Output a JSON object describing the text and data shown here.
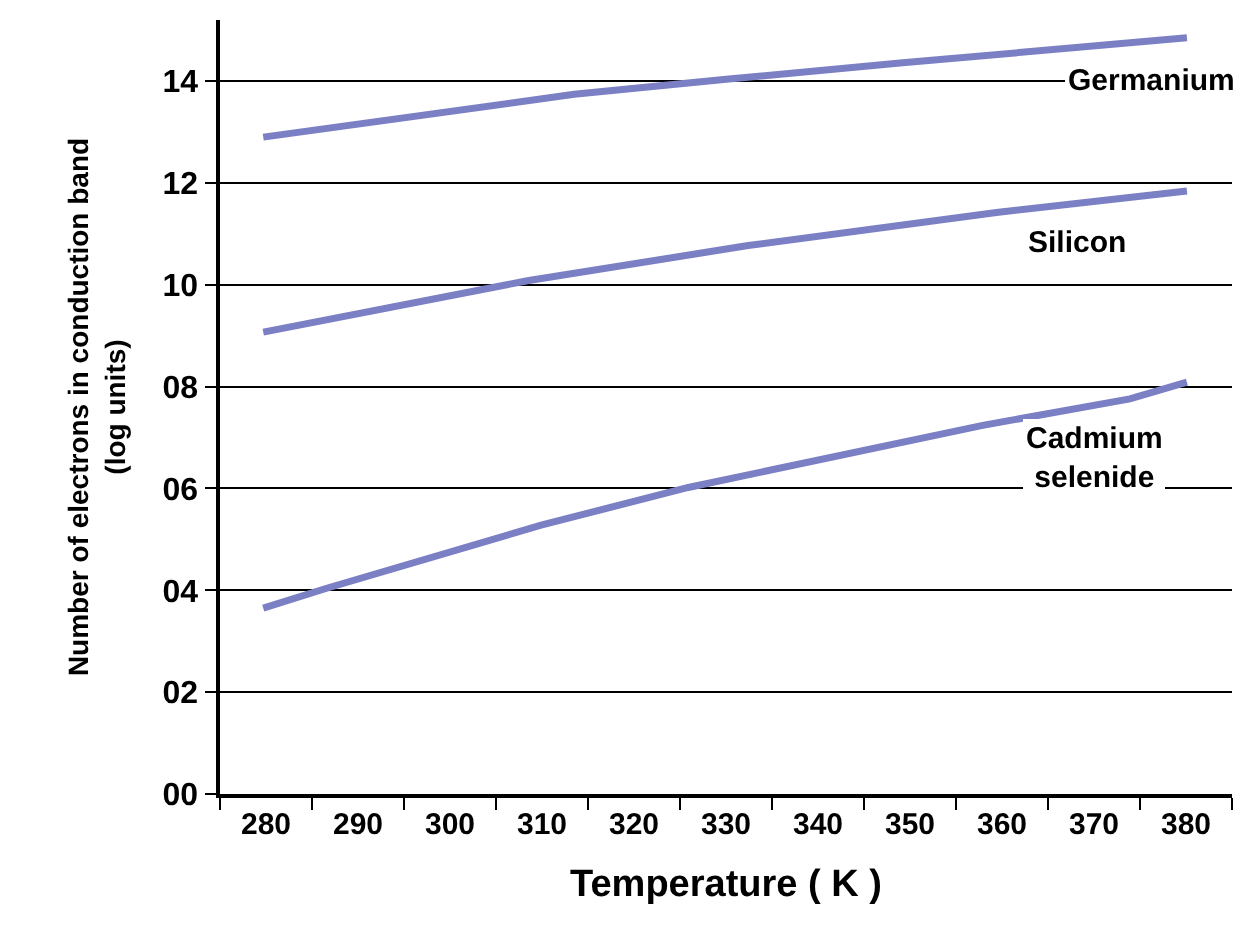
{
  "chart_data": {
    "type": "line",
    "xlabel": "Temperature ( K )",
    "ylabel": "Number of electrons in conduction band\n(log units)",
    "series": [
      {
        "name": "Germanium",
        "color": "#7b7fc4",
        "x": [
          279.7,
          313.5,
          330.3,
          349.2,
          380.1
        ],
        "values": [
          12.9,
          13.74,
          14.04,
          14.36,
          14.85
        ]
      },
      {
        "name": "Silicon",
        "color": "#7b7fc4",
        "x": [
          279.7,
          308.4,
          332.4,
          359.4,
          380.1
        ],
        "values": [
          9.07,
          10.08,
          10.77,
          11.42,
          11.84
        ]
      },
      {
        "name": "Cadmium selenide",
        "color": "#7b7fc4",
        "x": [
          279.7,
          286.6,
          309.9,
          325.9,
          357.9,
          373.9,
          380.1
        ],
        "values": [
          3.65,
          4.04,
          5.28,
          6.02,
          7.24,
          7.76,
          8.09
        ]
      }
    ],
    "xlim": [
      275,
      385
    ],
    "xticks": [
      280,
      290,
      300,
      310,
      320,
      330,
      340,
      350,
      360,
      370,
      380
    ],
    "ylim": [
      0,
      15.2
    ],
    "yticks": [
      {
        "value": 0,
        "label": "00"
      },
      {
        "value": 2,
        "label": "02"
      },
      {
        "value": 4,
        "label": "04"
      },
      {
        "value": 6,
        "label": "06"
      },
      {
        "value": 8,
        "label": "08"
      },
      10,
      12,
      14
    ],
    "grid": "y",
    "marker": "none",
    "line_style": "solid"
  }
}
